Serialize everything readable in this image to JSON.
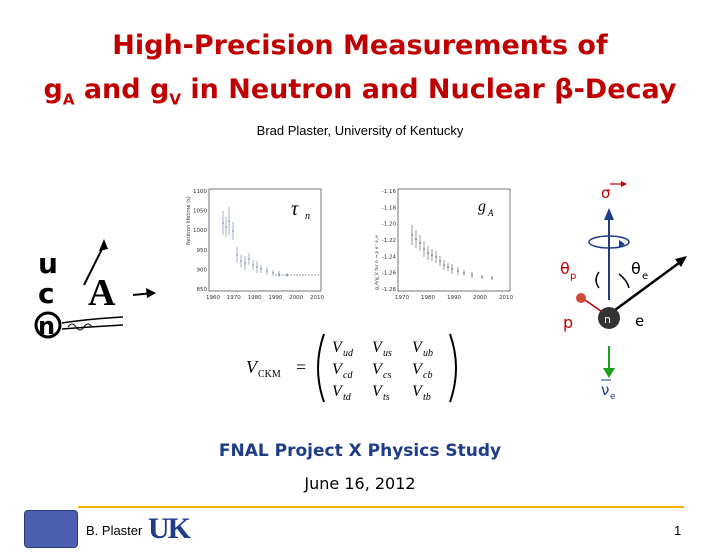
{
  "slide": {
    "title_line1": "High-Precision Measurements of",
    "title_line2_g1": "g",
    "title_line2_sub1": "A",
    "title_line2_mid": " and g",
    "title_line2_sub2": "V",
    "title_line2_rest": " in Neutron and Nuclear β-Decay",
    "author": "Brad Plaster, University of Kentucky",
    "study": "FNAL Project X Physics Study",
    "date": "June 16, 2012",
    "footer_name": "B. Plaster",
    "page_number": "1",
    "uk_logo_text": "UK",
    "title_color": "#c00000",
    "study_color": "#1f3c88",
    "footer_line_color": "#f0b000"
  },
  "ucna_logo": {
    "u": "u",
    "c": "c",
    "n": "n",
    "A": "A"
  },
  "lifetime_plot": {
    "label": "τ",
    "label_sub": "n",
    "ylabel": "Neutron lifetime (s)",
    "yticks": [
      "1100",
      "1050",
      "1000",
      "950",
      "900",
      "850"
    ],
    "xticks": [
      "1960",
      "1970",
      "1980",
      "1990",
      "2000",
      "2010"
    ]
  },
  "ga_plot": {
    "label": "g",
    "label_sub": "A",
    "ylabel": "g_A/g_V for n → p e⁻ ν̄_e",
    "yticks": [
      "-1.16",
      "-1.18",
      "-1.20",
      "-1.22",
      "-1.24",
      "-1.26",
      "-1.28"
    ],
    "xticks": [
      "1970",
      "1980",
      "1990",
      "2000",
      "2010"
    ]
  },
  "ckm": {
    "lhs": "V",
    "lhs_sub": "CKM",
    "eq": "=",
    "row1": [
      "ud",
      "us",
      "ub"
    ],
    "row2": [
      "cd",
      "cs",
      "cb"
    ],
    "row3": [
      "td",
      "ts",
      "tb"
    ],
    "V": "V"
  },
  "decay_diagram": {
    "sigma": "σ",
    "theta": "θ",
    "sub_p": "p",
    "sub_e": "e",
    "p_label": "p",
    "e_label": "e",
    "n_label": "n",
    "nu": "ν",
    "nu_sub": "e",
    "sigma_color": "#c00000",
    "proton_color": "#d04a3a",
    "neutrino_color": "#1aa01a"
  }
}
